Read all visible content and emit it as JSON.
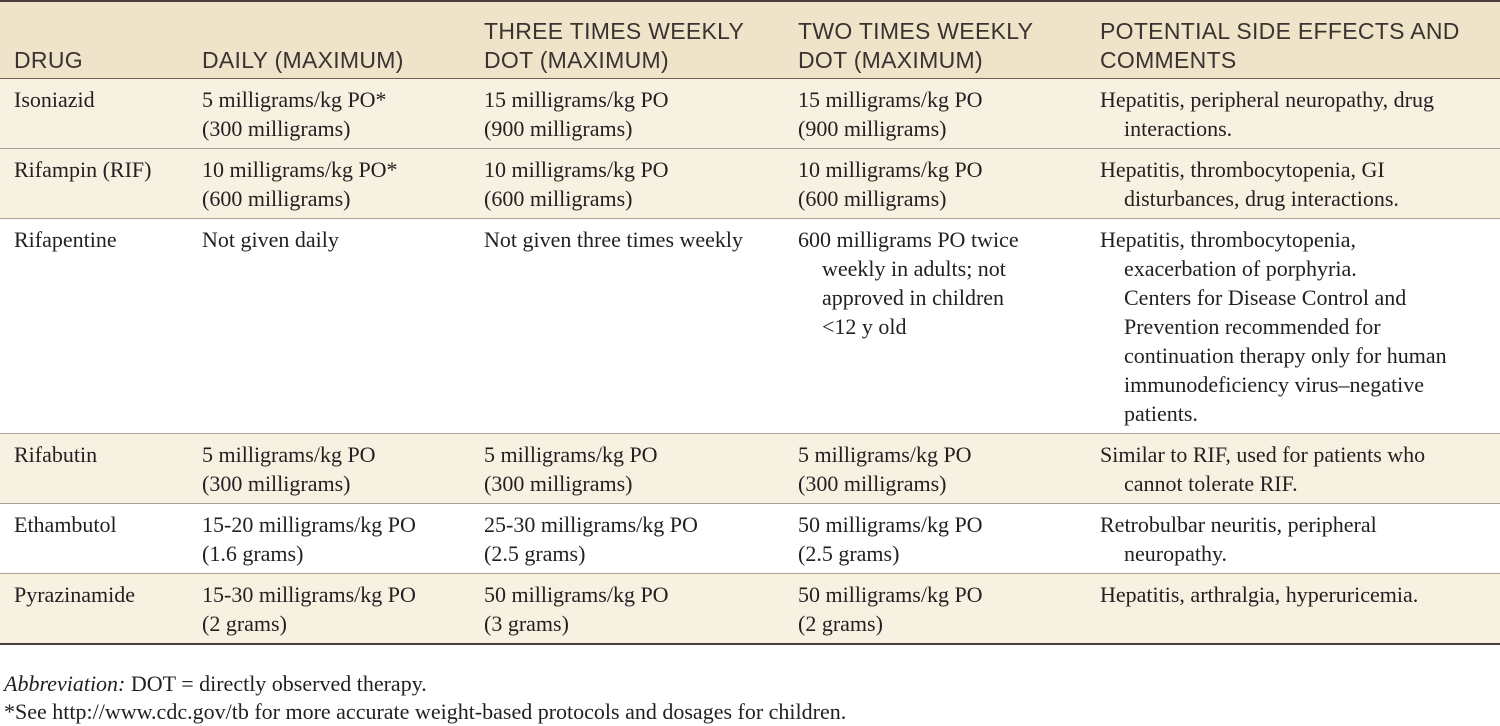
{
  "table": {
    "headers": [
      "DRUG",
      "DAILY (MAXIMUM)",
      "THREE TIMES WEEKLY\nDOT (MAXIMUM)",
      "TWO TIMES WEEKLY\nDOT (MAXIMUM)",
      "POTENTIAL SIDE EFFECTS AND\nCOMMENTS"
    ],
    "rows": [
      {
        "drug": "Isoniazid",
        "daily": [
          "5 milligrams/kg PO*",
          "(300 milligrams)"
        ],
        "three_weekly": [
          "15 milligrams/kg PO",
          "(900 milligrams)"
        ],
        "two_weekly": [
          "15 milligrams/kg PO",
          "(900 milligrams)"
        ],
        "comments": [
          "Hepatitis, peripheral neuropathy, drug",
          "interactions."
        ]
      },
      {
        "drug": "Rifampin (RIF)",
        "daily": [
          "10 milligrams/kg PO*",
          "(600 milligrams)"
        ],
        "three_weekly": [
          "10 milligrams/kg PO",
          "(600 milligrams)"
        ],
        "two_weekly": [
          "10 milligrams/kg PO",
          "(600 milligrams)"
        ],
        "comments": [
          "Hepatitis, thrombocytopenia, GI",
          "disturbances, drug interactions."
        ]
      },
      {
        "drug": "Rifapentine",
        "daily": [
          "Not given daily"
        ],
        "three_weekly": [
          "Not given three times weekly"
        ],
        "two_weekly": [
          "600 milligrams PO twice",
          "weekly in adults; not",
          "approved in children",
          "<12 y old"
        ],
        "comments": [
          "Hepatitis, thrombocytopenia,",
          "exacerbation of porphyria.",
          "Centers for Disease Control and",
          "Prevention recommended for",
          "continuation therapy only for human",
          "immunodeficiency virus–negative",
          "patients."
        ]
      },
      {
        "drug": "Rifabutin",
        "daily": [
          "5 milligrams/kg PO",
          "(300 milligrams)"
        ],
        "three_weekly": [
          "5 milligrams/kg PO",
          "(300 milligrams)"
        ],
        "two_weekly": [
          "5 milligrams/kg PO",
          "(300 milligrams)"
        ],
        "comments": [
          "Similar to RIF, used for patients who",
          "cannot tolerate RIF."
        ]
      },
      {
        "drug": "Ethambutol",
        "daily": [
          "15-20 milligrams/kg PO",
          "(1.6 grams)"
        ],
        "three_weekly": [
          "25-30 milligrams/kg PO",
          "(2.5 grams)"
        ],
        "two_weekly": [
          "50 milligrams/kg PO",
          "(2.5 grams)"
        ],
        "comments": [
          "Retrobulbar neuritis, peripheral",
          "neuropathy."
        ]
      },
      {
        "drug": "Pyrazinamide",
        "daily": [
          "15-30 milligrams/kg PO",
          "(2 grams)"
        ],
        "three_weekly": [
          "50 milligrams/kg PO",
          "(3 grams)"
        ],
        "two_weekly": [
          "50 milligrams/kg PO",
          "(2 grams)"
        ],
        "comments": [
          "Hepatitis, arthralgia, hyperuricemia."
        ]
      }
    ]
  },
  "footnotes": {
    "abbreviation_label": "Abbreviation:",
    "abbreviation_text": " DOT = directly observed therapy.",
    "note": "*See http://www.cdc.gov/tb for more accurate weight-based protocols and dosages for children."
  },
  "colors": {
    "header_background": "#efe4c9",
    "shaded_row_background": "#f7f1e2",
    "rule": "#4a4039"
  }
}
